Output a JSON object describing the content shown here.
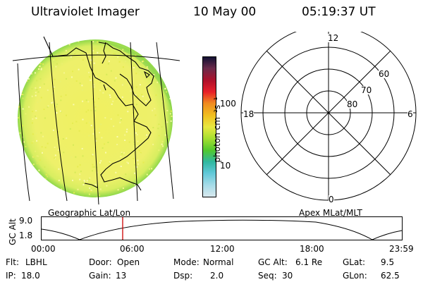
{
  "header": {
    "title": "Ultraviolet Imager",
    "date": "10 May 00",
    "time": "05:19:37 UT"
  },
  "colorbar": {
    "units": "photon cm⁻²s⁻¹",
    "ticks": [
      "100",
      "10"
    ],
    "colors": [
      "#111133",
      "#6a2a4a",
      "#b0102a",
      "#e8202a",
      "#f08a20",
      "#f0c020",
      "#e8e840",
      "#a8e030",
      "#50c830",
      "#30b8a0",
      "#60c8d8",
      "#a8dce8",
      "#d8e8ee"
    ]
  },
  "polar": {
    "labels": {
      "top": "12",
      "left": "18",
      "right": "6",
      "bottom": "0"
    },
    "rings": [
      "60",
      "70",
      "80"
    ]
  },
  "timeline": {
    "left_label": "Geographic Lat/Lon",
    "right_label": "Apex MLat/MLT",
    "axis_title": "GC Alt",
    "y_ticks": [
      "9.0",
      "1.8"
    ],
    "x_ticks": [
      "00:00",
      "06:00",
      "12:00",
      "18:00",
      "23:59"
    ],
    "marker_color": "#cc0000"
  },
  "footer": {
    "row1": [
      {
        "k": "Flt:",
        "v": "LBHL"
      },
      {
        "k": "Door:",
        "v": "Open"
      },
      {
        "k": "Mode:",
        "v": "Normal"
      },
      {
        "k": "GC Alt:",
        "v": "6.1 Re"
      },
      {
        "k": "GLat:",
        "v": "9.5"
      }
    ],
    "row2": [
      {
        "k": "IP:",
        "v": "18.0"
      },
      {
        "k": "Gain:",
        "v": "13"
      },
      {
        "k": "Dsp:",
        "v": "2.0"
      },
      {
        "k": "Seq:",
        "v": "30"
      },
      {
        "k": "GLon:",
        "v": "62.5"
      }
    ]
  }
}
